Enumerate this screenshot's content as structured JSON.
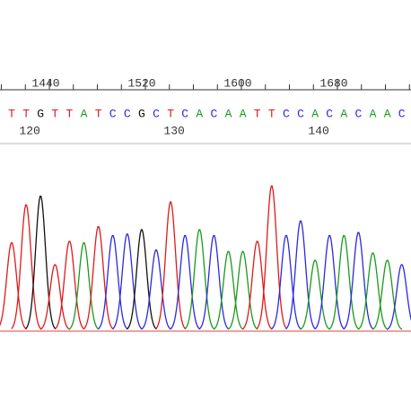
{
  "ruler": {
    "ticks": [
      1440,
      1520,
      1600,
      1680
    ],
    "range": [
      1400,
      1740
    ]
  },
  "bases": {
    "sequence": [
      "T",
      "T",
      "G",
      "T",
      "T",
      "A",
      "T",
      "C",
      "C",
      "G",
      "C",
      "T",
      "C",
      "A",
      "C",
      "A",
      "A",
      "T",
      "T",
      "C",
      "C",
      "A",
      "C",
      "A",
      "C",
      "A",
      "A",
      "C"
    ],
    "first_position": 119,
    "positions": [
      120,
      130,
      140
    ],
    "colors": {
      "A": "#1a9a1a",
      "C": "#2a2ae0",
      "G": "#111111",
      "T": "#e01a1a"
    }
  },
  "trace": {
    "peak_heights": [
      60,
      86,
      92,
      45,
      61,
      60,
      71,
      65,
      66,
      69,
      55,
      88,
      65,
      69,
      65,
      54,
      54,
      61,
      99,
      65,
      75,
      48,
      65,
      65,
      67,
      53,
      48,
      45
    ],
    "max": 100
  }
}
